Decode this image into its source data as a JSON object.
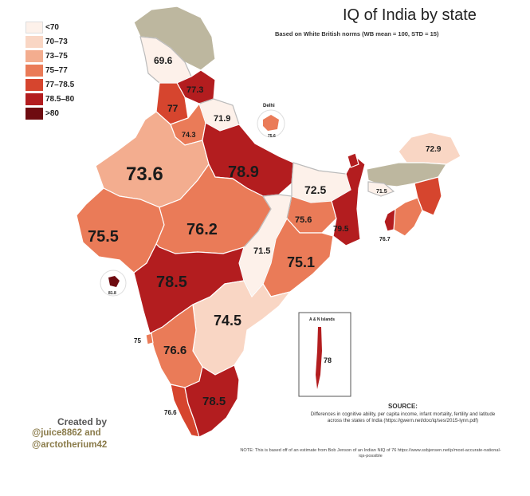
{
  "title": "IQ of India by state",
  "subtitle": "Based on White British norms (WB mean = 100, STD = 15)",
  "legend": [
    {
      "label": "<70",
      "color": "#fdf1ea"
    },
    {
      "label": "70–73",
      "color": "#f9d6c4"
    },
    {
      "label": "73–75",
      "color": "#f3ad8f"
    },
    {
      "label": "75–77",
      "color": "#ea7b58"
    },
    {
      "label": "77–78.5",
      "color": "#d6452e"
    },
    {
      "label": "78.5–80",
      "color": "#b31d1f"
    },
    {
      "label": ">80",
      "color": "#6e0b10"
    }
  ],
  "colors": {
    "nodata": "#bdb79f",
    "border": "#ffffff"
  },
  "states": [
    {
      "name": "jammu-kashmir",
      "value": "69.6"
    },
    {
      "name": "himachal",
      "value": "77.3"
    },
    {
      "name": "punjab",
      "value": "77"
    },
    {
      "name": "uttarakhand",
      "value": "71.9"
    },
    {
      "name": "haryana",
      "value": "74.3"
    },
    {
      "name": "rajasthan",
      "value": "73.6"
    },
    {
      "name": "uttar-pradesh",
      "value": "78.9"
    },
    {
      "name": "bihar",
      "value": "72.5"
    },
    {
      "name": "gujarat",
      "value": "75.5"
    },
    {
      "name": "madhya-pradesh",
      "value": "76.2"
    },
    {
      "name": "jharkhand",
      "value": "75.6"
    },
    {
      "name": "west-bengal",
      "value": "79.5"
    },
    {
      "name": "chhattisgarh",
      "value": "71.5"
    },
    {
      "name": "odisha",
      "value": "75.1"
    },
    {
      "name": "maharashtra",
      "value": "78.5"
    },
    {
      "name": "telangana-andhra",
      "value": "74.5"
    },
    {
      "name": "goa",
      "value": "75"
    },
    {
      "name": "karnataka",
      "value": "76.6"
    },
    {
      "name": "kerala",
      "value": "76.6"
    },
    {
      "name": "tamil-nadu",
      "value": "78.5"
    },
    {
      "name": "arunachal",
      "value": "72.9"
    },
    {
      "name": "assam",
      "value": "71.5"
    },
    {
      "name": "tripura",
      "value": "76.7"
    },
    {
      "name": "daman-diu",
      "value": "81.8"
    },
    {
      "name": "delhi",
      "value": "75.6"
    },
    {
      "name": "andaman",
      "value": "78"
    }
  ],
  "delhi_label": "Delhi",
  "inset_label": "A & N Islands",
  "credit": {
    "title": "Created by",
    "line1": "@juice8862 and",
    "line2": "@arctotherium42"
  },
  "source": {
    "head": "SOURCE:",
    "text": "Differences in cognitive ability, per capita income, infant mortality, fertility and latitude across the states of India (https://gwern.net/doc/iq/ses/2015-lynn.pdf)"
  },
  "note": "NOTE: This is based off of an estimate from Bob Jenson of an Indian NIQ of 76 https://www.ssbjensen.net/p/most-accurate-national-iqs-possible"
}
